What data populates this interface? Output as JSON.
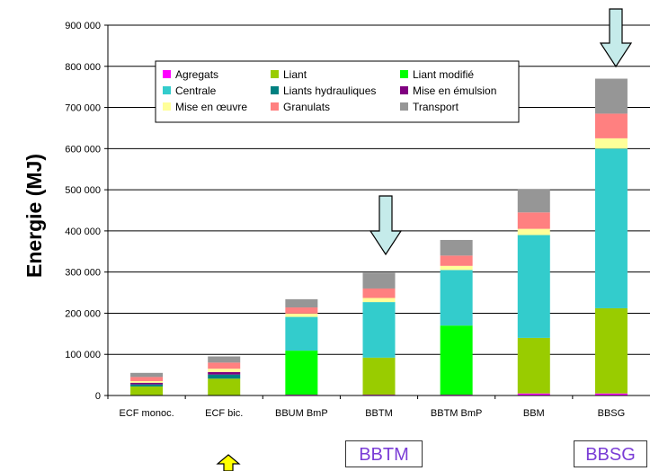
{
  "chart_data": {
    "type": "bar",
    "stacked": true,
    "ylabel": "Energie (MJ)",
    "ylim": [
      0,
      900000
    ],
    "yticks": [
      0,
      100000,
      200000,
      300000,
      400000,
      500000,
      600000,
      700000,
      800000,
      900000
    ],
    "ytick_labels": [
      "0",
      "100 000",
      "200 000",
      "300 000",
      "400 000",
      "500 000",
      "600 000",
      "700 000",
      "800 000",
      "900 000"
    ],
    "categories": [
      "ECF monoc.",
      "ECF bic.",
      "BBUM BmP",
      "BBTM",
      "BBTM BmP",
      "BBM",
      "BBSG"
    ],
    "grid": true,
    "legend_position": "top-center",
    "series": [
      {
        "name": "Agregats",
        "color": "#ff00ff",
        "values": [
          0,
          1000,
          2000,
          2000,
          2000,
          5000,
          5000
        ]
      },
      {
        "name": "Liant",
        "color": "#99cc00",
        "values": [
          22000,
          40000,
          0,
          90000,
          0,
          135000,
          207000
        ]
      },
      {
        "name": "Liant modifié",
        "color": "#00ff00",
        "values": [
          0,
          0,
          107000,
          0,
          168000,
          0,
          0
        ]
      },
      {
        "name": "Centrale",
        "color": "#33cccc",
        "values": [
          0,
          0,
          82000,
          135000,
          135000,
          250000,
          388000
        ]
      },
      {
        "name": "Liants hydrauliques",
        "color": "#008080",
        "values": [
          5000,
          10000,
          0,
          0,
          0,
          0,
          0
        ]
      },
      {
        "name": "Mise en émulsion",
        "color": "#800080",
        "values": [
          4000,
          6000,
          0,
          0,
          0,
          0,
          0
        ]
      },
      {
        "name": "Mise en œuvre",
        "color": "#ffff99",
        "values": [
          4000,
          8000,
          8000,
          10000,
          10000,
          15000,
          25000
        ]
      },
      {
        "name": "Granulats",
        "color": "#ff8080",
        "values": [
          10000,
          15000,
          15000,
          23000,
          25000,
          40000,
          60000
        ]
      },
      {
        "name": "Transport",
        "color": "#969696",
        "values": [
          10000,
          15000,
          20000,
          38000,
          38000,
          57000,
          85000
        ]
      }
    ]
  },
  "callouts": [
    "BBTM",
    "BBSG"
  ]
}
